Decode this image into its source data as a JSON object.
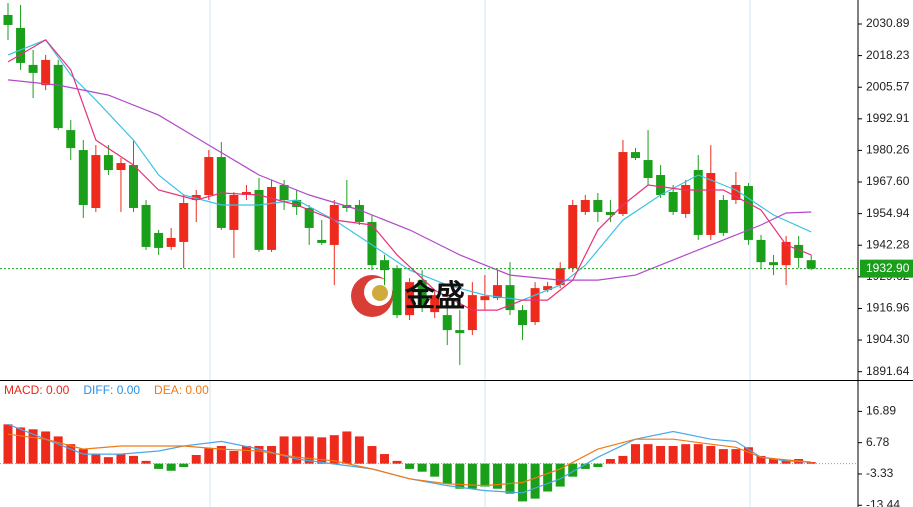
{
  "chart_data": [
    {
      "type": "candlestick",
      "open": [
        2034.5,
        2029.3,
        2014.5,
        2006.4,
        2014.5,
        1988.4,
        1980.4,
        1957.2,
        1978.4,
        1972.4,
        1974.4,
        1958.4,
        1947.2,
        1941.6,
        1943.6,
        1960.4,
        1962.4,
        1977.6,
        1948.4,
        1962.4,
        1964.4,
        1940.4,
        1966.4,
        1960.4,
        1957.2,
        1944.4,
        1942.4,
        1958.4,
        1958.4,
        1951.6,
        1936.3,
        1933.1,
        1914.3,
        1928.3,
        1915.5,
        1914.3,
        1908.3,
        1908.3,
        1920.3,
        1921.1,
        1926.3,
        1916.3,
        1911.5,
        1924.3,
        1926.3,
        1933.1,
        1955.6,
        1960.4,
        1955.6,
        1954.8,
        1979.6,
        1976.4,
        1970.4,
        1963.6,
        1954.8,
        1972.4,
        1946.4,
        1960.4,
        1960.4,
        1966.0,
        1944.4,
        1935.5,
        1934.3,
        1942.4,
        1936.3
      ],
      "high": [
        2039.3,
        2038.5,
        2020.5,
        2018.5,
        2016.5,
        1992.4,
        1984.4,
        1982.4,
        1982.4,
        1977.2,
        1984.4,
        1960.4,
        1948.4,
        1949.2,
        1962.4,
        1964.4,
        1980.4,
        1983.6,
        1963.6,
        1966.4,
        1969.2,
        1968.4,
        1968.4,
        1964.4,
        1958.4,
        1952.4,
        1960.4,
        1968.4,
        1960.4,
        1954.4,
        1938.4,
        1934.3,
        1929.1,
        1932.3,
        1924.3,
        1921.1,
        1916.3,
        1927.5,
        1930.3,
        1932.3,
        1935.5,
        1918.3,
        1927.5,
        1927.5,
        1935.5,
        1960.4,
        1962.4,
        1963.2,
        1960.4,
        1984.4,
        1981.2,
        1988.4,
        1974.4,
        1966.4,
        1968.4,
        1978.4,
        1982.4,
        1962.4,
        1971.6,
        1967.2,
        1946.4,
        1938.4,
        1946.0,
        1946.0,
        1938.4
      ],
      "low": [
        2024.5,
        2012.5,
        2001.2,
        2004.4,
        1988.4,
        1976.4,
        1953.2,
        1955.6,
        1970.4,
        1955.6,
        1955.6,
        1940.4,
        1938.4,
        1940.4,
        1933.1,
        1951.6,
        1960.4,
        1948.4,
        1937.2,
        1960.4,
        1939.6,
        1939.6,
        1956.4,
        1954.4,
        1942.4,
        1942.4,
        1926.3,
        1955.6,
        1950.4,
        1932.3,
        1926.3,
        1913.1,
        1912.3,
        1915.5,
        1913.1,
        1902.3,
        1894.3,
        1906.3,
        1916.3,
        1920.3,
        1914.3,
        1904.3,
        1910.3,
        1923.5,
        1925.1,
        1931.5,
        1954.4,
        1951.6,
        1951.6,
        1954.0,
        1976.4,
        1966.4,
        1961.2,
        1954.4,
        1953.2,
        1944.4,
        1944.4,
        1946.0,
        1958.8,
        1942.4,
        1933.1,
        1930.3,
        1926.3,
        1933.1,
        1932.3
      ],
      "close": [
        2030.5,
        2015.3,
        2011.3,
        2016.5,
        1989.2,
        1981.2,
        1958.4,
        1978.4,
        1972.4,
        1975.2,
        1957.2,
        1941.6,
        1941.2,
        1945.2,
        1959.2,
        1962.4,
        1977.6,
        1949.2,
        1962.4,
        1963.6,
        1940.4,
        1965.6,
        1960.4,
        1957.6,
        1949.2,
        1943.2,
        1958.4,
        1957.2,
        1951.6,
        1934.3,
        1932.3,
        1914.3,
        1927.5,
        1918.3,
        1922.3,
        1908.3,
        1907.1,
        1922.3,
        1921.9,
        1926.3,
        1916.3,
        1910.3,
        1925.1,
        1925.9,
        1933.1,
        1958.4,
        1960.4,
        1955.6,
        1954.4,
        1979.6,
        1977.2,
        1969.2,
        1962.4,
        1955.6,
        1966.4,
        1946.4,
        1971.2,
        1947.2,
        1966.4,
        1944.4,
        1935.5,
        1934.3,
        1943.6,
        1937.2,
        1932.9
      ],
      "up_color": "#ee2a1d",
      "down_color": "#1a9f1a",
      "lines": [
        {
          "color": "#3cc3e3",
          "x": [
            0,
            3,
            5,
            7,
            10,
            12,
            14,
            17,
            20,
            23,
            26,
            29,
            32,
            35,
            38,
            41,
            44,
            46,
            49,
            52,
            55,
            58,
            61,
            64
          ],
          "values": [
            2018.5,
            2024.5,
            2010.5,
            2000.4,
            1984.4,
            1970.4,
            1962.4,
            1958.4,
            1958.4,
            1960.4,
            1952.4,
            1942.4,
            1932.3,
            1926.3,
            1922.3,
            1920.3,
            1926.3,
            1934.3,
            1952.4,
            1962.4,
            1970.4,
            1964.4,
            1954.4,
            1947.6
          ]
        },
        {
          "color": "#e8307a",
          "x": [
            0,
            3,
            5,
            7,
            10,
            12,
            15,
            17,
            20,
            23,
            26,
            29,
            31,
            34,
            37,
            39,
            41,
            43,
            45,
            47,
            49,
            51,
            54,
            57,
            60,
            62,
            64
          ],
          "values": [
            2015.7,
            2024.5,
            2012.5,
            1984.4,
            1974.4,
            1964.4,
            1960.4,
            1963.2,
            1962.4,
            1958.4,
            1952.4,
            1950.4,
            1938.4,
            1924.3,
            1916.3,
            1916.3,
            1920.3,
            1920.3,
            1928.3,
            1948.4,
            1958.4,
            1966.4,
            1964.4,
            1964.4,
            1956.4,
            1942.4,
            1938.4
          ]
        },
        {
          "color": "#b04ac8",
          "x": [
            0,
            4,
            8,
            12,
            16,
            20,
            24,
            28,
            32,
            36,
            40,
            44,
            47,
            50,
            54,
            57,
            60,
            62,
            64
          ],
          "values": [
            2008.5,
            2006.4,
            2002.4,
            1994.4,
            1982.4,
            1970.4,
            1962.4,
            1956.4,
            1948.4,
            1938.4,
            1930.3,
            1928.3,
            1928.3,
            1930.3,
            1938.4,
            1944.4,
            1950.4,
            1955.2,
            1955.6
          ]
        }
      ],
      "ylim": [
        1888.3,
        2040.5
      ],
      "yticks": [
        2030.89,
        2018.23,
        2005.57,
        1992.91,
        1980.26,
        {
          "value": 1967.6,
          "label": "1967.60"
        },
        1954.94,
        1942.28,
        1929.62,
        1916.96,
        {
          "value": 1904.3,
          "label": "1904.30"
        },
        1891.64
      ],
      "last_price": {
        "value": 1932.9,
        "label": "1932.90"
      },
      "last_price_color": "#1a9f1a",
      "watermark": "金盛"
    },
    {
      "type": "macd",
      "values": [
        12.7,
        11.7,
        11.1,
        10.4,
        8.8,
        6.3,
        4.7,
        3.1,
        2.1,
        3.1,
        2.5,
        0.9,
        -1.7,
        -2.3,
        -1.1,
        2.8,
        5.0,
        5.7,
        4.1,
        5.7,
        5.7,
        5.7,
        8.8,
        8.8,
        8.8,
        8.5,
        9.2,
        10.4,
        8.8,
        5.7,
        3.1,
        0.9,
        -1.7,
        -2.6,
        -4.2,
        -6.5,
        -8.1,
        -8.1,
        -7.4,
        -8.1,
        -9.7,
        -12.2,
        -11.3,
        -9.0,
        -7.4,
        -4.2,
        -1.7,
        -1.1,
        1.5,
        2.5,
        6.3,
        6.3,
        5.7,
        5.7,
        6.3,
        6.3,
        5.7,
        4.7,
        4.7,
        5.3,
        2.5,
        1.5,
        1.2,
        1.5,
        0.5
      ],
      "up_color": "#ee2a1d",
      "down_color": "#1a9f1a",
      "lines": [
        {
          "color": "#4aa8e8",
          "x": [
            0,
            3,
            6,
            9,
            12,
            14,
            17,
            20,
            23,
            26,
            29,
            32,
            35,
            38,
            41,
            44,
            47,
            50,
            53,
            56,
            58,
            60,
            62,
            64
          ],
          "values": [
            12.7,
            7.9,
            3.1,
            3.1,
            4.1,
            5.7,
            7.2,
            4.7,
            1.5,
            -0.1,
            -1.7,
            -4.9,
            -7.1,
            -8.7,
            -9.4,
            -4.9,
            2.1,
            7.9,
            10.4,
            7.9,
            7.2,
            2.1,
            0.9,
            0.5
          ]
        },
        {
          "color": "#f07a12",
          "x": [
            0,
            3,
            6,
            9,
            12,
            14,
            17,
            20,
            23,
            26,
            29,
            32,
            35,
            38,
            41,
            44,
            47,
            50,
            53,
            56,
            58,
            60,
            62,
            64
          ],
          "values": [
            9.5,
            7.9,
            4.7,
            5.7,
            5.7,
            5.7,
            4.7,
            4.1,
            2.1,
            0.9,
            -1.7,
            -4.9,
            -6.5,
            -7.1,
            -6.1,
            -1.7,
            4.7,
            7.9,
            7.9,
            6.3,
            5.3,
            2.1,
            1.2,
            0.5
          ]
        }
      ],
      "legend": [
        {
          "label": "MACD: 0.00",
          "color": "#e8261c"
        },
        {
          "label": "DIFF: 0.00",
          "color": "#2b8fe0"
        },
        {
          "label": "DEA: 0.00",
          "color": "#f07a12"
        }
      ],
      "ylim": [
        -14.0,
        26.7
      ],
      "yticks": [
        16.89,
        6.78,
        -3.33,
        -13.44
      ]
    }
  ]
}
